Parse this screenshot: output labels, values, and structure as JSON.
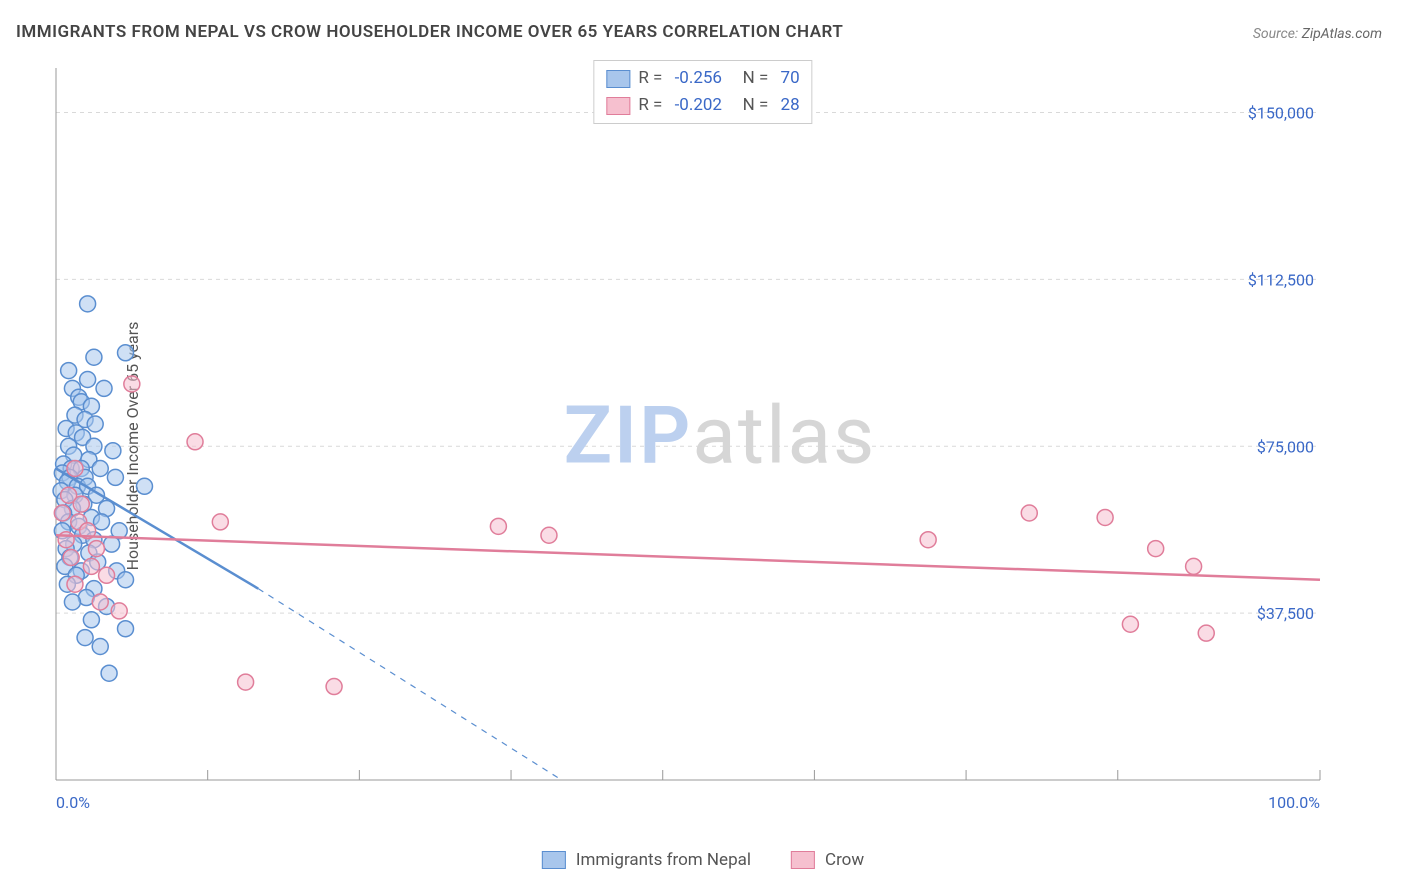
{
  "title": "IMMIGRANTS FROM NEPAL VS CROW HOUSEHOLDER INCOME OVER 65 YEARS CORRELATION CHART",
  "source_label": "Source: ",
  "source_value": "ZipAtlas.com",
  "ylabel": "Householder Income Over 65 years",
  "watermark_a": "ZIP",
  "watermark_b": "atlas",
  "chart": {
    "type": "scatter",
    "xlim": [
      0,
      100
    ],
    "ylim": [
      0,
      160000
    ],
    "xtick_positions": [
      0,
      12,
      24,
      36,
      48,
      60,
      72,
      84,
      100
    ],
    "xtick_labels": {
      "0": "0.0%",
      "100": "100.0%"
    },
    "ytick_positions": [
      37500,
      75000,
      112500,
      150000
    ],
    "ytick_labels": [
      "$37,500",
      "$75,000",
      "$112,500",
      "$150,000"
    ],
    "grid_color": "#d9d9d9",
    "axis_color": "#999999",
    "background_color": "#ffffff",
    "point_radius": 8,
    "point_stroke_width": 1.5,
    "line_width": 2.5,
    "series": [
      {
        "name": "Immigrants from Nepal",
        "fill": "#a8c6ec",
        "stroke": "#5a8ed0",
        "fill_opacity": 0.55,
        "R": "-0.256",
        "N": "70",
        "trend": {
          "x1": 0,
          "y1": 70000,
          "x2": 16,
          "y2": 43000,
          "extend_x2": 40,
          "extend_y2": 0
        },
        "points": [
          [
            2.5,
            107000
          ],
          [
            5.5,
            96000
          ],
          [
            3.0,
            95000
          ],
          [
            1.0,
            92000
          ],
          [
            2.5,
            90000
          ],
          [
            1.3,
            88000
          ],
          [
            3.8,
            88000
          ],
          [
            1.8,
            86000
          ],
          [
            2.0,
            85000
          ],
          [
            2.8,
            84000
          ],
          [
            1.5,
            82000
          ],
          [
            2.3,
            81000
          ],
          [
            3.1,
            80000
          ],
          [
            0.8,
            79000
          ],
          [
            1.6,
            78000
          ],
          [
            2.1,
            77000
          ],
          [
            1.0,
            75000
          ],
          [
            3.0,
            75000
          ],
          [
            4.5,
            74000
          ],
          [
            1.4,
            73000
          ],
          [
            2.6,
            72000
          ],
          [
            0.6,
            71000
          ],
          [
            1.2,
            70000
          ],
          [
            2.0,
            70000
          ],
          [
            3.5,
            70000
          ],
          [
            0.5,
            69000
          ],
          [
            1.1,
            68000
          ],
          [
            2.3,
            68000
          ],
          [
            4.7,
            68000
          ],
          [
            0.9,
            67000
          ],
          [
            1.7,
            66000
          ],
          [
            2.5,
            66000
          ],
          [
            7.0,
            66000
          ],
          [
            0.4,
            65000
          ],
          [
            1.5,
            64000
          ],
          [
            3.2,
            64000
          ],
          [
            0.7,
            63000
          ],
          [
            2.2,
            62000
          ],
          [
            1.3,
            61000
          ],
          [
            4.0,
            61000
          ],
          [
            0.6,
            60000
          ],
          [
            2.8,
            59000
          ],
          [
            1.0,
            58000
          ],
          [
            3.6,
            58000
          ],
          [
            1.8,
            57000
          ],
          [
            0.5,
            56000
          ],
          [
            5.0,
            56000
          ],
          [
            2.1,
            55000
          ],
          [
            3.0,
            54000
          ],
          [
            1.4,
            53000
          ],
          [
            4.4,
            53000
          ],
          [
            0.8,
            52000
          ],
          [
            2.6,
            51000
          ],
          [
            1.1,
            50000
          ],
          [
            3.3,
            49000
          ],
          [
            0.7,
            48000
          ],
          [
            2.0,
            47000
          ],
          [
            4.8,
            47000
          ],
          [
            1.6,
            46000
          ],
          [
            5.5,
            45000
          ],
          [
            0.9,
            44000
          ],
          [
            3.0,
            43000
          ],
          [
            2.4,
            41000
          ],
          [
            1.3,
            40000
          ],
          [
            4.0,
            39000
          ],
          [
            2.8,
            36000
          ],
          [
            5.5,
            34000
          ],
          [
            2.3,
            32000
          ],
          [
            3.5,
            30000
          ],
          [
            4.2,
            24000
          ]
        ]
      },
      {
        "name": "Crow",
        "fill": "#f6c0cf",
        "stroke": "#e07d9a",
        "fill_opacity": 0.55,
        "R": "-0.202",
        "N": "28",
        "trend": {
          "x1": 0,
          "y1": 55000,
          "x2": 100,
          "y2": 45000
        },
        "points": [
          [
            6.0,
            89000
          ],
          [
            1.5,
            70000
          ],
          [
            1.0,
            64000
          ],
          [
            2.0,
            62000
          ],
          [
            0.5,
            60000
          ],
          [
            1.8,
            58000
          ],
          [
            2.5,
            56000
          ],
          [
            0.8,
            54000
          ],
          [
            3.2,
            52000
          ],
          [
            1.2,
            50000
          ],
          [
            2.8,
            48000
          ],
          [
            4.0,
            46000
          ],
          [
            1.5,
            44000
          ],
          [
            3.5,
            40000
          ],
          [
            5.0,
            38000
          ],
          [
            11.0,
            76000
          ],
          [
            13.0,
            58000
          ],
          [
            35.0,
            57000
          ],
          [
            39.0,
            55000
          ],
          [
            69.0,
            54000
          ],
          [
            77.0,
            60000
          ],
          [
            83.0,
            59000
          ],
          [
            87.0,
            52000
          ],
          [
            90.0,
            48000
          ],
          [
            85.0,
            35000
          ],
          [
            91.0,
            33000
          ],
          [
            15.0,
            22000
          ],
          [
            22.0,
            21000
          ]
        ]
      }
    ]
  }
}
